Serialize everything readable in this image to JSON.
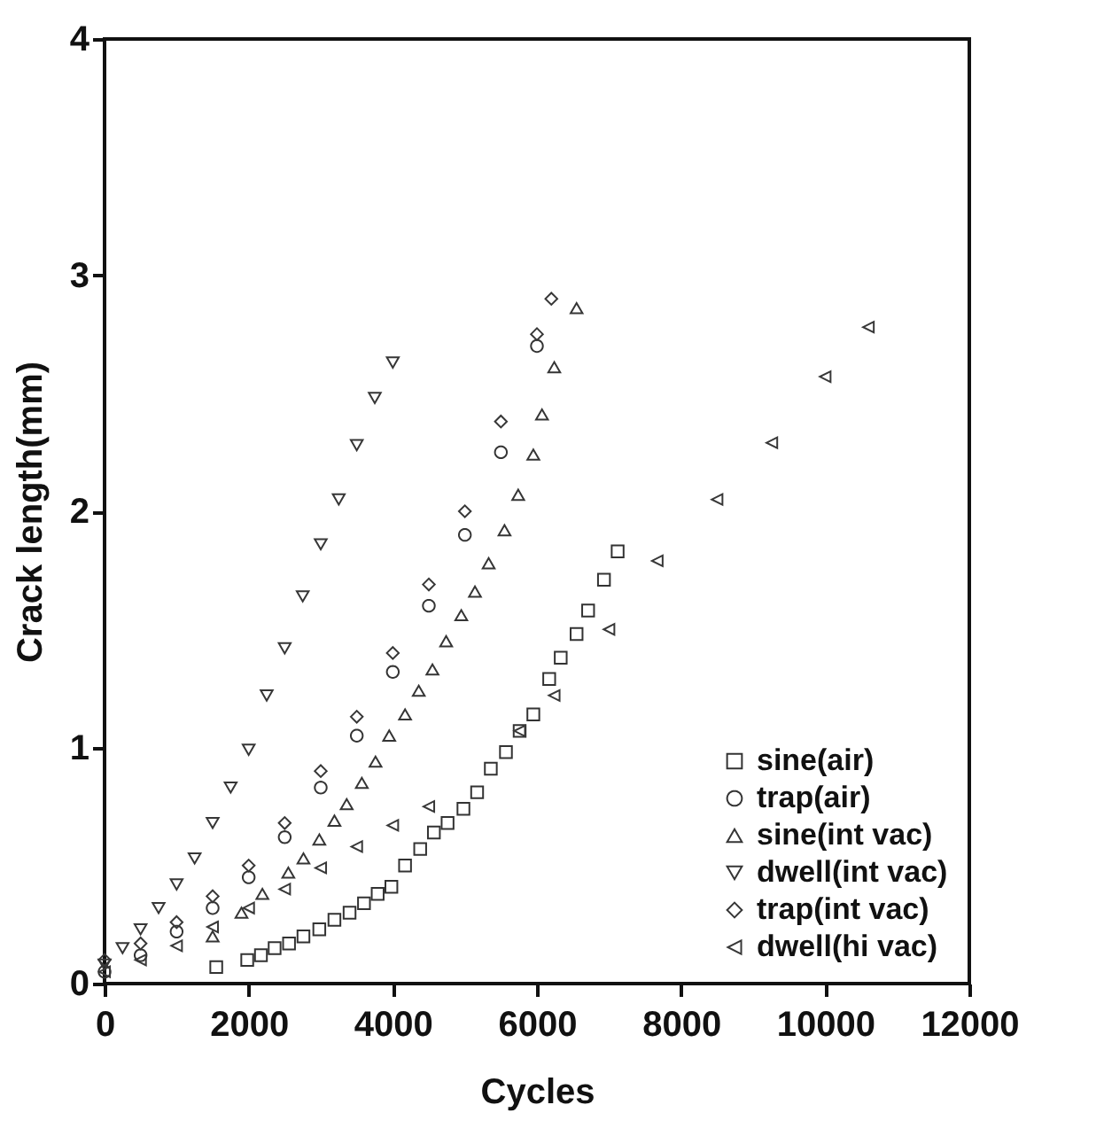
{
  "chart_data": {
    "type": "scatter",
    "xlabel": "Cycles",
    "ylabel": "Crack length(mm)",
    "xlim": [
      0,
      12000
    ],
    "ylim": [
      0,
      4
    ],
    "xticks": [
      0,
      2000,
      4000,
      6000,
      8000,
      10000,
      12000
    ],
    "yticks": [
      0,
      1,
      2,
      3,
      4
    ],
    "grid": false,
    "legend": "bottom right",
    "series": [
      {
        "name": "sine(air)",
        "color": "#333333",
        "marker": "square",
        "x": [
          1550,
          1980,
          2170,
          2360,
          2560,
          2760,
          2980,
          3190,
          3400,
          3600,
          3790,
          3980,
          4170,
          4380,
          4570,
          4760,
          4980,
          5170,
          5360,
          5570,
          5760,
          5950,
          6170,
          6330,
          6550,
          6710,
          6930,
          7120
        ],
        "values": [
          0.07,
          0.1,
          0.12,
          0.15,
          0.17,
          0.2,
          0.23,
          0.27,
          0.3,
          0.34,
          0.38,
          0.41,
          0.5,
          0.57,
          0.64,
          0.68,
          0.74,
          0.81,
          0.91,
          0.98,
          1.07,
          1.14,
          1.29,
          1.38,
          1.48,
          1.58,
          1.71,
          1.83
        ]
      },
      {
        "name": "trap(air)",
        "color": "#343434",
        "marker": "circle",
        "x": [
          0,
          500,
          1000,
          1500,
          2000,
          2500,
          3000,
          3500,
          4000,
          4500,
          5000,
          5500,
          6000
        ],
        "values": [
          0.05,
          0.12,
          0.22,
          0.32,
          0.45,
          0.62,
          0.83,
          1.05,
          1.32,
          1.6,
          1.9,
          2.25,
          2.7
        ]
      },
      {
        "name": "sine(int vac)",
        "color": "#353535",
        "marker": "triangle",
        "x": [
          1500,
          1900,
          2190,
          2550,
          2760,
          2980,
          3190,
          3360,
          3570,
          3760,
          3950,
          4170,
          4360,
          4550,
          4740,
          4950,
          5140,
          5330,
          5550,
          5740,
          5950,
          6070,
          6240,
          6550
        ],
        "values": [
          0.2,
          0.3,
          0.38,
          0.47,
          0.53,
          0.61,
          0.69,
          0.76,
          0.85,
          0.94,
          1.05,
          1.14,
          1.24,
          1.33,
          1.45,
          1.56,
          1.66,
          1.78,
          1.92,
          2.07,
          2.24,
          2.41,
          2.61,
          2.86
        ]
      },
      {
        "name": "dwell(int vac)",
        "color": "#363636",
        "marker": "triangle-down",
        "x": [
          0,
          250,
          500,
          750,
          1000,
          1250,
          1500,
          1750,
          2000,
          2250,
          2500,
          2750,
          3000,
          3250,
          3500,
          3750,
          4000
        ],
        "values": [
          0.08,
          0.15,
          0.23,
          0.32,
          0.42,
          0.53,
          0.68,
          0.83,
          0.99,
          1.22,
          1.42,
          1.64,
          1.86,
          2.05,
          2.28,
          2.48,
          2.63
        ]
      },
      {
        "name": "trap(int vac)",
        "color": "#373737",
        "marker": "diamond",
        "x": [
          0,
          500,
          1000,
          1500,
          2000,
          2500,
          3000,
          3500,
          4000,
          4500,
          5000,
          5500,
          6000,
          6200
        ],
        "values": [
          0.1,
          0.17,
          0.26,
          0.37,
          0.5,
          0.68,
          0.9,
          1.13,
          1.4,
          1.69,
          2.0,
          2.38,
          2.75,
          2.9
        ]
      },
      {
        "name": "dwell(hi vac)",
        "color": "#383838",
        "marker": "triangle-left",
        "x": [
          0,
          500,
          1000,
          1500,
          2000,
          2500,
          3000,
          3500,
          4000,
          4500,
          5760,
          6240,
          7000,
          7670,
          8500,
          9260,
          10000,
          10600
        ],
        "values": [
          0.05,
          0.1,
          0.16,
          0.24,
          0.32,
          0.4,
          0.49,
          0.58,
          0.67,
          0.75,
          1.07,
          1.22,
          1.5,
          1.79,
          2.05,
          2.29,
          2.57,
          2.78
        ]
      }
    ]
  }
}
